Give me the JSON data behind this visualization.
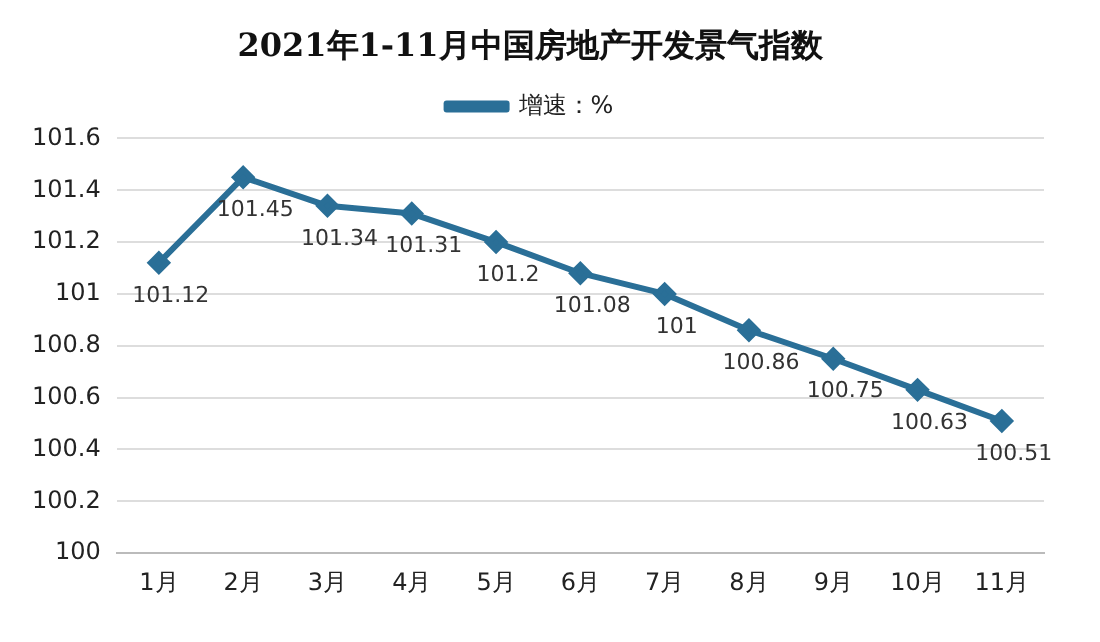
{
  "chart_data": {
    "type": "line",
    "title": "2021年1-11月中国房地产开发景气指数",
    "categories": [
      "1月",
      "2月",
      "3月",
      "4月",
      "5月",
      "6月",
      "7月",
      "8月",
      "9月",
      "10月",
      "11月"
    ],
    "series": [
      {
        "name": "增速：%",
        "color": "#2a6f97",
        "values": [
          101.12,
          101.45,
          101.34,
          101.31,
          101.2,
          101.08,
          101,
          100.86,
          100.75,
          100.63,
          100.51
        ]
      }
    ],
    "ylim": [
      100,
      101.6
    ],
    "yticks": [
      100,
      100.2,
      100.4,
      100.6,
      100.8,
      101,
      101.2,
      101.4,
      101.6
    ],
    "grid": "y",
    "legend": "top",
    "marker": "diamond",
    "line_style": "solid",
    "data_labels": true
  }
}
